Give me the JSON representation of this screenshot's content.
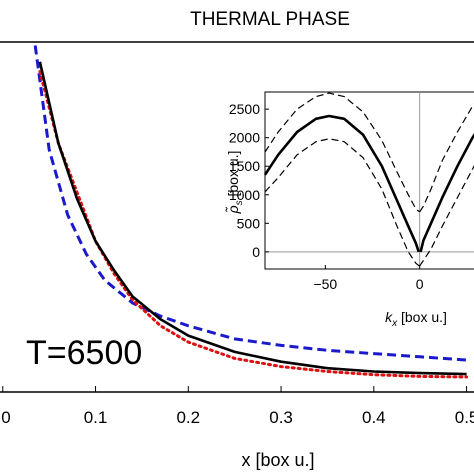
{
  "chart_data": [
    {
      "type": "line",
      "title": "THERMAL PHASE",
      "xlabel": "x [box u.]",
      "ylabel": "",
      "xlim": [
        0,
        0.5
      ],
      "xticks": [
        "0",
        "0.1",
        "0.2",
        "0.3",
        "0.4",
        "0.5"
      ],
      "annotation": "T=6500",
      "series": [
        {
          "color": "#000000",
          "dash": "solid",
          "x": [
            0.04,
            0.06,
            0.08,
            0.1,
            0.12,
            0.14,
            0.17,
            0.2,
            0.25,
            0.3,
            0.35,
            0.4,
            0.45,
            0.5
          ],
          "y": [
            0.97,
            0.72,
            0.55,
            0.42,
            0.33,
            0.25,
            0.18,
            0.13,
            0.08,
            0.05,
            0.03,
            0.02,
            0.015,
            0.012
          ]
        },
        {
          "color": "#1a1acc",
          "dash": "dashed",
          "x": [
            0.035,
            0.05,
            0.07,
            0.09,
            0.11,
            0.14,
            0.17,
            0.2,
            0.25,
            0.3,
            0.35,
            0.4,
            0.45,
            0.5
          ],
          "y": [
            1.02,
            0.7,
            0.5,
            0.38,
            0.3,
            0.23,
            0.19,
            0.16,
            0.12,
            0.1,
            0.085,
            0.075,
            0.065,
            0.055
          ]
        },
        {
          "color": "#dd1111",
          "dash": "dotted",
          "x": [
            0.04,
            0.06,
            0.08,
            0.1,
            0.12,
            0.14,
            0.17,
            0.2,
            0.25,
            0.3,
            0.35,
            0.4,
            0.45,
            0.5
          ],
          "y": [
            0.94,
            0.72,
            0.57,
            0.42,
            0.32,
            0.24,
            0.16,
            0.11,
            0.06,
            0.035,
            0.02,
            0.01,
            0.005,
            0.003
          ]
        }
      ]
    },
    {
      "type": "line",
      "xlabel_main": "k",
      "xlabel_sub": "x",
      "xlabel_rest": " [box u.]",
      "ylabel_main": "ρ̃",
      "ylabel_sub": "s",
      "ylabel_rest": " [box u.]",
      "xlim": [
        -82,
        32
      ],
      "ylim": [
        -300,
        2800
      ],
      "xticks": [
        -50,
        0
      ],
      "xtick_labels": [
        "−50",
        "0"
      ],
      "yticks": [
        0,
        500,
        1000,
        1500,
        2000,
        2500
      ],
      "ytick_labels": [
        "0",
        "500",
        "1000",
        "1500",
        "2000",
        "2500"
      ],
      "series": [
        {
          "color": "#000000",
          "dash": "solid",
          "x": [
            -82,
            -75,
            -65,
            -55,
            -48,
            -40,
            -30,
            -20,
            -12,
            -6,
            -2,
            -0.5
          ],
          "y": [
            1350,
            1700,
            2100,
            2330,
            2380,
            2330,
            2050,
            1500,
            900,
            450,
            150,
            0
          ]
        },
        {
          "color": "#000000",
          "dash": "solid",
          "x": [
            0.5,
            2,
            6,
            12,
            20,
            28,
            32
          ],
          "y": [
            0,
            200,
            500,
            950,
            1500,
            2000,
            2200
          ]
        },
        {
          "color": "#000000",
          "dash": "dashed",
          "x": [
            -82,
            -75,
            -65,
            -55,
            -48,
            -40,
            -30,
            -20,
            -12,
            -6,
            -2,
            0
          ],
          "y": [
            1750,
            2100,
            2500,
            2720,
            2780,
            2720,
            2450,
            1950,
            1400,
            1000,
            750,
            700
          ]
        },
        {
          "color": "#000000",
          "dash": "dashed",
          "x": [
            -82,
            -75,
            -65,
            -55,
            -48,
            -40,
            -30,
            -20,
            -12,
            -6,
            -2,
            0
          ],
          "y": [
            1050,
            1300,
            1700,
            1930,
            1980,
            1930,
            1650,
            1100,
            450,
            0,
            -200,
            -250
          ]
        },
        {
          "color": "#000000",
          "dash": "dashed",
          "x": [
            0,
            2,
            6,
            12,
            20,
            28,
            32
          ],
          "y": [
            700,
            800,
            1100,
            1600,
            2100,
            2550,
            2700
          ]
        },
        {
          "color": "#000000",
          "dash": "dashed",
          "x": [
            0,
            2,
            6,
            12,
            20,
            28,
            32
          ],
          "y": [
            -250,
            -150,
            50,
            450,
            950,
            1450,
            1700
          ]
        }
      ]
    }
  ]
}
